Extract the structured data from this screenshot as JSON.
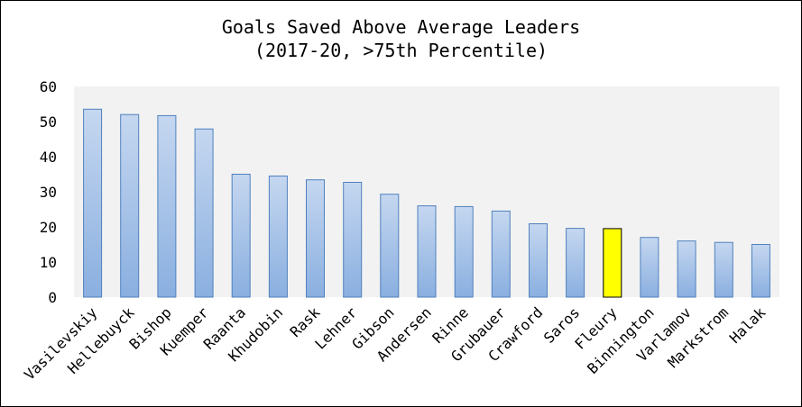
{
  "chart_data": {
    "type": "bar",
    "title": "Goals Saved Above Average Leaders",
    "subtitle": "(2017-20, >75th Percentile)",
    "xlabel": "",
    "ylabel": "",
    "ylim": [
      0,
      60
    ],
    "yticks": [
      0,
      10,
      20,
      30,
      40,
      50,
      60
    ],
    "grid": false,
    "legend": "none",
    "categories": [
      "Vasilevskiy",
      "Hellebuyck",
      "Bishop",
      "Kuemper",
      "Raanta",
      "Khudobin",
      "Rask",
      "Lehner",
      "Gibson",
      "Andersen",
      "Rinne",
      "Grubauer",
      "Crawford",
      "Saros",
      "Fleury",
      "Binnington",
      "Varlamov",
      "Markstrom",
      "Halak"
    ],
    "values": [
      53.5,
      52.0,
      51.7,
      47.9,
      35.0,
      34.5,
      33.4,
      32.7,
      29.3,
      26.0,
      25.8,
      24.5,
      20.9,
      19.6,
      19.5,
      17.0,
      16.0,
      15.6,
      15.0
    ],
    "highlight": "Fleury",
    "colors": {
      "bar_top": "#c5d7f0",
      "bar_bottom": "#8aafe0",
      "bar_stroke": "#4f81bd",
      "highlight_fill": "#ffff00",
      "highlight_stroke": "#000000",
      "plot_background": "#f2f2f2"
    }
  }
}
